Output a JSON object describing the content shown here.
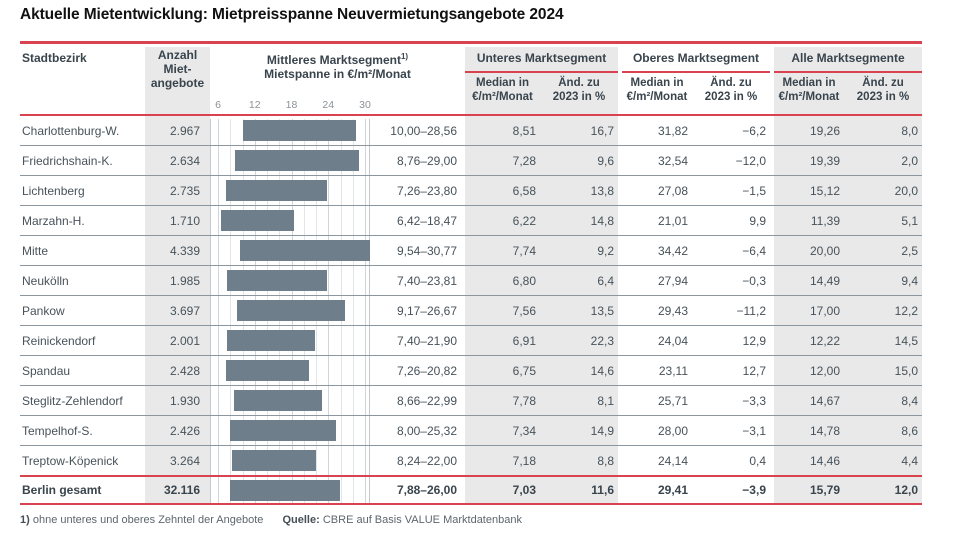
{
  "title": "Aktuelle Mietentwicklung: Mietpreisspanne Neuvermietungsangebote 2024",
  "header": {
    "district": "Stadtbezirk",
    "count_lines": [
      "Anzahl",
      "Miet-",
      "angebote"
    ],
    "mid_segment_title": "Mittleres Marktsegment",
    "mid_segment_footnote_marker": "1)",
    "mid_segment_subtitle": "Mietspanne in €/m²/Monat",
    "segments": [
      {
        "label": "Unteres Marktsegment"
      },
      {
        "label": "Oberes Marktsegment"
      },
      {
        "label": "Alle Marktsegmente"
      }
    ],
    "sub_median_lines": [
      "Median in",
      "€/m²/Monat"
    ],
    "sub_change_lines": [
      "Änd. zu",
      "2023 in %"
    ]
  },
  "chart_data": {
    "type": "bar",
    "subtype": "horizontal-range-bars-embedded-in-table",
    "title": "Mittleres Marktsegment — Mietspanne in €/m²/Monat",
    "bar_axis": {
      "min": 6,
      "max": 32,
      "ticks": [
        6,
        12,
        18,
        24,
        30
      ],
      "grid_step": 2,
      "unit": "€/m²/Monat",
      "grid": true
    },
    "rows": [
      {
        "district": "Charlottenburg-W.",
        "offers": "2.967",
        "span_low": 10.0,
        "span_high": 28.56,
        "span_label": "10,00–28,56",
        "lower_median": "8,51",
        "lower_change": "16,7",
        "upper_median": "31,82",
        "upper_change": "−6,2",
        "all_median": "19,26",
        "all_change": "8,0"
      },
      {
        "district": "Friedrichshain-K.",
        "offers": "2.634",
        "span_low": 8.76,
        "span_high": 29.0,
        "span_label": "8,76–29,00",
        "lower_median": "7,28",
        "lower_change": "9,6",
        "upper_median": "32,54",
        "upper_change": "−12,0",
        "all_median": "19,39",
        "all_change": "2,0"
      },
      {
        "district": "Lichtenberg",
        "offers": "2.735",
        "span_low": 7.26,
        "span_high": 23.8,
        "span_label": "7,26–23,80",
        "lower_median": "6,58",
        "lower_change": "13,8",
        "upper_median": "27,08",
        "upper_change": "−1,5",
        "all_median": "15,12",
        "all_change": "20,0"
      },
      {
        "district": "Marzahn-H.",
        "offers": "1.710",
        "span_low": 6.42,
        "span_high": 18.47,
        "span_label": "6,42–18,47",
        "lower_median": "6,22",
        "lower_change": "14,8",
        "upper_median": "21,01",
        "upper_change": "9,9",
        "all_median": "11,39",
        "all_change": "5,1"
      },
      {
        "district": "Mitte",
        "offers": "4.339",
        "span_low": 9.54,
        "span_high": 30.77,
        "span_label": "9,54–30,77",
        "lower_median": "7,74",
        "lower_change": "9,2",
        "upper_median": "34,42",
        "upper_change": "−6,4",
        "all_median": "20,00",
        "all_change": "2,5"
      },
      {
        "district": "Neukölln",
        "offers": "1.985",
        "span_low": 7.4,
        "span_high": 23.81,
        "span_label": "7,40–23,81",
        "lower_median": "6,80",
        "lower_change": "6,4",
        "upper_median": "27,94",
        "upper_change": "−0,3",
        "all_median": "14,49",
        "all_change": "9,4"
      },
      {
        "district": "Pankow",
        "offers": "3.697",
        "span_low": 9.17,
        "span_high": 26.67,
        "span_label": "9,17–26,67",
        "lower_median": "7,56",
        "lower_change": "13,5",
        "upper_median": "29,43",
        "upper_change": "−11,2",
        "all_median": "17,00",
        "all_change": "12,2"
      },
      {
        "district": "Reinickendorf",
        "offers": "2.001",
        "span_low": 7.4,
        "span_high": 21.9,
        "span_label": "7,40–21,90",
        "lower_median": "6,91",
        "lower_change": "22,3",
        "upper_median": "24,04",
        "upper_change": "12,9",
        "all_median": "12,22",
        "all_change": "14,5"
      },
      {
        "district": "Spandau",
        "offers": "2.428",
        "span_low": 7.26,
        "span_high": 20.82,
        "span_label": "7,26–20,82",
        "lower_median": "6,75",
        "lower_change": "14,6",
        "upper_median": "23,11",
        "upper_change": "12,7",
        "all_median": "12,00",
        "all_change": "15,0"
      },
      {
        "district": "Steglitz-Zehlendorf",
        "offers": "1.930",
        "span_low": 8.66,
        "span_high": 22.99,
        "span_label": "8,66–22,99",
        "lower_median": "7,78",
        "lower_change": "8,1",
        "upper_median": "25,71",
        "upper_change": "−3,3",
        "all_median": "14,67",
        "all_change": "8,4"
      },
      {
        "district": "Tempelhof-S.",
        "offers": "2.426",
        "span_low": 8.0,
        "span_high": 25.32,
        "span_label": "8,00–25,32",
        "lower_median": "7,34",
        "lower_change": "14,9",
        "upper_median": "28,00",
        "upper_change": "−3,1",
        "all_median": "14,78",
        "all_change": "8,6"
      },
      {
        "district": "Treptow-Köpenick",
        "offers": "3.264",
        "span_low": 8.24,
        "span_high": 22.0,
        "span_label": "8,24–22,00",
        "lower_median": "7,18",
        "lower_change": "8,8",
        "upper_median": "24,14",
        "upper_change": "0,4",
        "all_median": "14,46",
        "all_change": "4,4"
      }
    ],
    "total": {
      "district": "Berlin gesamt",
      "offers": "32.116",
      "span_low": 7.88,
      "span_high": 26.0,
      "span_label": "7,88–26,00",
      "lower_median": "7,03",
      "lower_change": "11,6",
      "upper_median": "29,41",
      "upper_change": "−3,9",
      "all_median": "15,79",
      "all_change": "12,0"
    }
  },
  "footnote": {
    "marker": "1)",
    "text": "ohne unteres und oberes Zehntel der Angebote",
    "source_label": "Quelle:",
    "source_text": "CBRE auf Basis VALUE Marktdatenbank"
  },
  "colors": {
    "accent_red": "#d9434f",
    "bar_fill": "#6e7e8a",
    "band_gray": "#e9e9e9",
    "row_separator": "#8b969e",
    "text_dark": "#39444c",
    "text_body": "#47525a",
    "tick_text": "#8b9298"
  }
}
